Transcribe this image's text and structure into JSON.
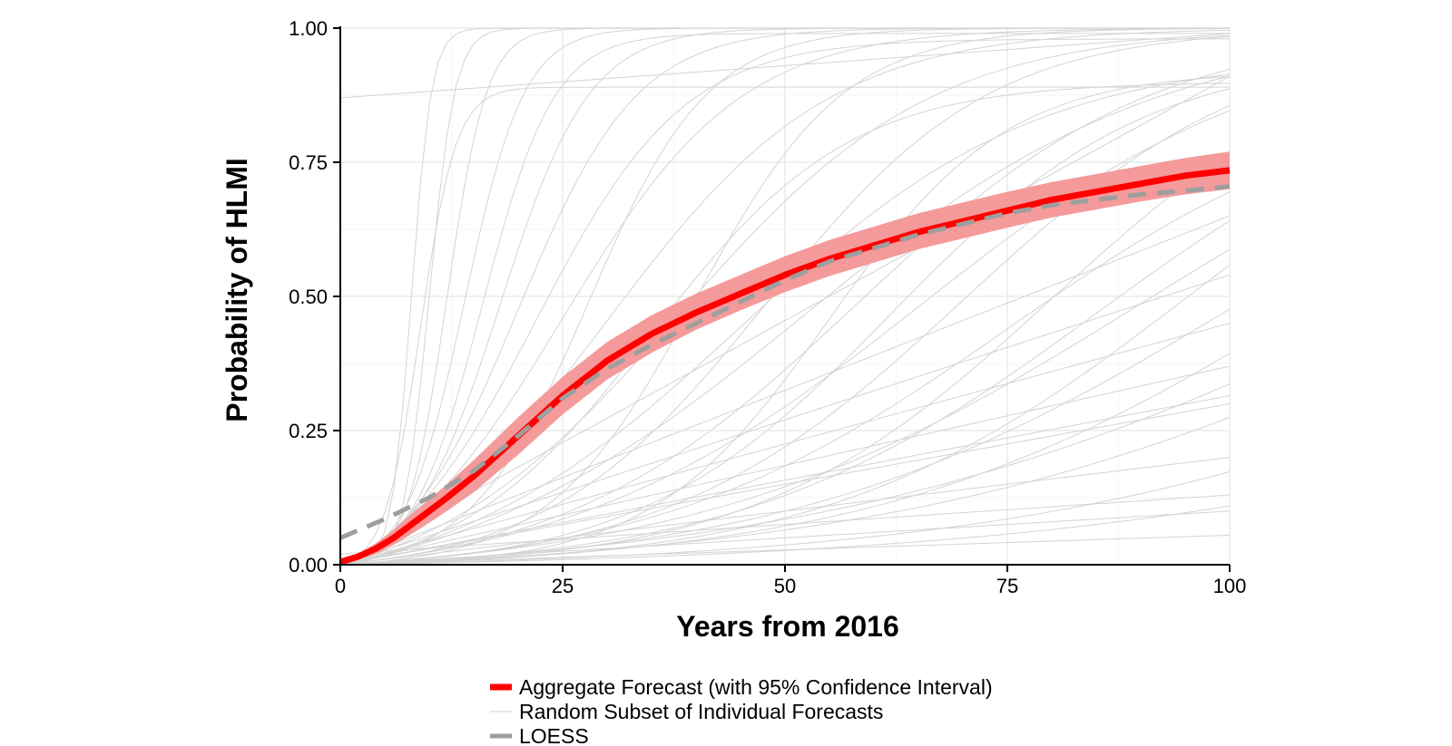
{
  "chart_data": {
    "type": "line",
    "title": "",
    "xlabel": "Years from 2016",
    "ylabel": "Probability of HLMI",
    "xlim": [
      0,
      100
    ],
    "ylim": [
      0,
      1
    ],
    "x_ticks": [
      0,
      25,
      50,
      75,
      100
    ],
    "x_tick_labels": [
      "0",
      "25",
      "50",
      "75",
      "100"
    ],
    "y_ticks": [
      0,
      0.25,
      0.5,
      0.75,
      1.0
    ],
    "y_tick_labels": [
      "0.00",
      "0.25",
      "0.50",
      "0.75",
      "1.00"
    ],
    "grid": true,
    "legend_position": "bottom",
    "series": [
      {
        "name": "Aggregate Forecast (with 95% Confidence Interval)",
        "color": "#ff0000",
        "band_color": "#f59a9a",
        "x": [
          0,
          2,
          4,
          6,
          8,
          10,
          12,
          15,
          20,
          25,
          30,
          35,
          40,
          45,
          50,
          55,
          60,
          65,
          70,
          75,
          80,
          85,
          90,
          95,
          100
        ],
        "values": [
          0.005,
          0.015,
          0.03,
          0.05,
          0.075,
          0.1,
          0.125,
          0.165,
          0.24,
          0.315,
          0.38,
          0.43,
          0.47,
          0.505,
          0.54,
          0.57,
          0.595,
          0.62,
          0.64,
          0.66,
          0.68,
          0.695,
          0.71,
          0.725,
          0.735
        ],
        "lower": [
          0.003,
          0.01,
          0.02,
          0.037,
          0.057,
          0.078,
          0.1,
          0.135,
          0.205,
          0.28,
          0.345,
          0.395,
          0.438,
          0.474,
          0.508,
          0.538,
          0.563,
          0.588,
          0.608,
          0.628,
          0.647,
          0.662,
          0.677,
          0.69,
          0.7
        ],
        "upper": [
          0.008,
          0.02,
          0.04,
          0.065,
          0.095,
          0.122,
          0.15,
          0.195,
          0.275,
          0.35,
          0.415,
          0.465,
          0.505,
          0.54,
          0.575,
          0.605,
          0.63,
          0.655,
          0.675,
          0.695,
          0.713,
          0.728,
          0.743,
          0.758,
          0.77
        ]
      },
      {
        "name": "Random Subset of Individual Forecasts",
        "color": "#d3d3d3"
      },
      {
        "name": "LOESS",
        "color": "#9e9e9e",
        "dashed": true,
        "x": [
          0,
          5,
          10,
          15,
          20,
          25,
          30,
          35,
          40,
          45,
          50,
          55,
          60,
          65,
          70,
          75,
          80,
          85,
          90,
          95,
          100
        ],
        "values": [
          0.05,
          0.085,
          0.125,
          0.175,
          0.24,
          0.31,
          0.365,
          0.41,
          0.45,
          0.49,
          0.53,
          0.565,
          0.59,
          0.615,
          0.635,
          0.655,
          0.67,
          0.68,
          0.69,
          0.697,
          0.705
        ]
      }
    ],
    "individual_forecasts": [
      {
        "type": "logistic",
        "mid": 8,
        "k": 0.9,
        "max": 1.0
      },
      {
        "type": "logistic",
        "mid": 9,
        "k": 0.5,
        "max": 0.89
      },
      {
        "type": "logistic",
        "mid": 10,
        "k": 0.7,
        "max": 1.0
      },
      {
        "type": "logistic",
        "mid": 12,
        "k": 0.45,
        "max": 1.0
      },
      {
        "type": "logistic",
        "mid": 14,
        "k": 0.3,
        "max": 1.0
      },
      {
        "type": "logistic",
        "mid": 16,
        "k": 0.25,
        "max": 0.99
      },
      {
        "type": "logistic",
        "mid": 18,
        "k": 0.2,
        "max": 1.0
      },
      {
        "type": "logistic",
        "mid": 20,
        "k": 0.15,
        "max": 1.0
      },
      {
        "type": "logistic",
        "mid": 22,
        "k": 0.12,
        "max": 0.98
      },
      {
        "type": "logistic",
        "mid": 25,
        "k": 0.1,
        "max": 1.0
      },
      {
        "type": "logistic",
        "mid": 28,
        "k": 0.15,
        "max": 1.0
      },
      {
        "type": "logistic",
        "mid": 30,
        "k": 0.08,
        "max": 1.0
      },
      {
        "type": "logistic",
        "mid": 35,
        "k": 0.09,
        "max": 0.9
      },
      {
        "type": "logistic",
        "mid": 38,
        "k": 0.07,
        "max": 1.0
      },
      {
        "type": "logistic",
        "mid": 40,
        "k": 0.12,
        "max": 1.0
      },
      {
        "type": "logistic",
        "mid": 45,
        "k": 0.06,
        "max": 0.95
      },
      {
        "type": "logistic",
        "mid": 48,
        "k": 0.08,
        "max": 1.0
      },
      {
        "type": "logistic",
        "mid": 52,
        "k": 0.05,
        "max": 1.0
      },
      {
        "type": "logistic",
        "mid": 55,
        "k": 0.1,
        "max": 0.92
      },
      {
        "type": "logistic",
        "mid": 58,
        "k": 0.06,
        "max": 1.0
      },
      {
        "type": "logistic",
        "mid": 62,
        "k": 0.07,
        "max": 0.95
      },
      {
        "type": "logistic",
        "mid": 65,
        "k": 0.05,
        "max": 1.0
      },
      {
        "type": "logistic",
        "mid": 70,
        "k": 0.06,
        "max": 1.0
      },
      {
        "type": "logistic",
        "mid": 75,
        "k": 0.05,
        "max": 0.9
      },
      {
        "type": "logistic",
        "mid": 80,
        "k": 0.06,
        "max": 1.0
      },
      {
        "type": "logistic",
        "mid": 85,
        "k": 0.05,
        "max": 0.95
      },
      {
        "type": "logistic",
        "mid": 90,
        "k": 0.04,
        "max": 1.0
      },
      {
        "type": "logistic",
        "mid": 95,
        "k": 0.05,
        "max": 1.0
      },
      {
        "type": "logistic",
        "mid": 100,
        "k": 0.04,
        "max": 0.97
      },
      {
        "type": "logistic",
        "mid": 110,
        "k": 0.04,
        "max": 1.0
      },
      {
        "type": "logistic",
        "mid": 120,
        "k": 0.03,
        "max": 1.0
      },
      {
        "type": "logistic",
        "mid": 130,
        "k": 0.03,
        "max": 1.0
      },
      {
        "type": "logistic",
        "mid": 150,
        "k": 0.03,
        "max": 1.0
      },
      {
        "type": "logistic",
        "mid": 180,
        "k": 0.025,
        "max": 1.0
      },
      {
        "type": "linear",
        "y0": 0.87,
        "y1": 0.99
      },
      {
        "type": "linear",
        "y0": 0.0,
        "y1": 0.055
      },
      {
        "type": "linear",
        "y0": 0.0,
        "y1": 0.1
      },
      {
        "type": "linear",
        "y0": 0.02,
        "y1": 0.13
      },
      {
        "type": "linear",
        "y0": 0.0,
        "y1": 0.2
      },
      {
        "type": "linear",
        "y0": 0.0,
        "y1": 0.3
      },
      {
        "type": "linear",
        "y0": 0.0,
        "y1": 0.315
      },
      {
        "type": "linear",
        "y0": 0.0,
        "y1": 0.37
      },
      {
        "type": "linear",
        "y0": 0.0,
        "y1": 0.45
      },
      {
        "type": "linear",
        "y0": 0.0,
        "y1": 0.54
      },
      {
        "type": "linear",
        "y0": 0.0,
        "y1": 0.65
      },
      {
        "type": "linear",
        "y0": 0.0,
        "y1": 0.91
      }
    ]
  }
}
